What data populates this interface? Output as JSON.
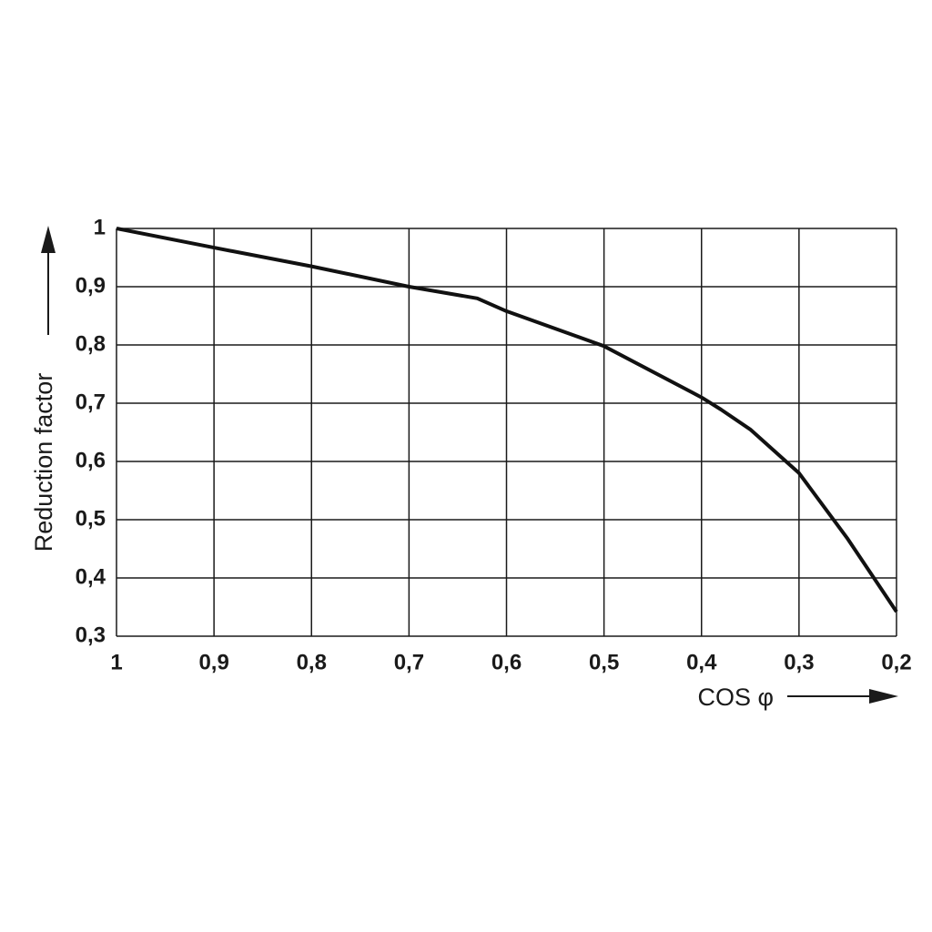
{
  "chart_data": {
    "type": "line",
    "x_label": "COS φ",
    "y_label": "Reduction factor",
    "x": [
      1,
      0.9,
      0.8,
      0.7,
      0.63,
      0.6,
      0.5,
      0.4,
      0.38,
      0.35,
      0.3,
      0.25,
      0.2
    ],
    "values": [
      1,
      0.967,
      0.935,
      0.9,
      0.88,
      0.858,
      0.798,
      0.71,
      0.689,
      0.655,
      0.58,
      0.467,
      0.342
    ],
    "color": "#111111",
    "xlim": [
      1,
      0.2
    ],
    "ylim": [
      0.3,
      1
    ],
    "xticks": [
      1,
      {
        "value": 0.9,
        "label": "0,9"
      },
      {
        "value": 0.8,
        "label": "0,8"
      },
      {
        "value": 0.7,
        "label": "0,7"
      },
      {
        "value": 0.6,
        "label": "0,6"
      },
      {
        "value": 0.5,
        "label": "0,5"
      },
      {
        "value": 0.4,
        "label": "0,4"
      },
      {
        "value": 0.3,
        "label": "0,3"
      },
      {
        "value": 0.2,
        "label": "0,2"
      }
    ],
    "yticks": [
      {
        "value": 0.3,
        "label": "0,3"
      },
      {
        "value": 0.4,
        "label": "0,4"
      },
      {
        "value": 0.5,
        "label": "0,5"
      },
      {
        "value": 0.6,
        "label": "0,6"
      },
      {
        "value": 0.7,
        "label": "0,7"
      },
      {
        "value": 0.8,
        "label": "0,8"
      },
      {
        "value": 0.9,
        "label": "0,9"
      },
      1
    ],
    "grid": true
  }
}
